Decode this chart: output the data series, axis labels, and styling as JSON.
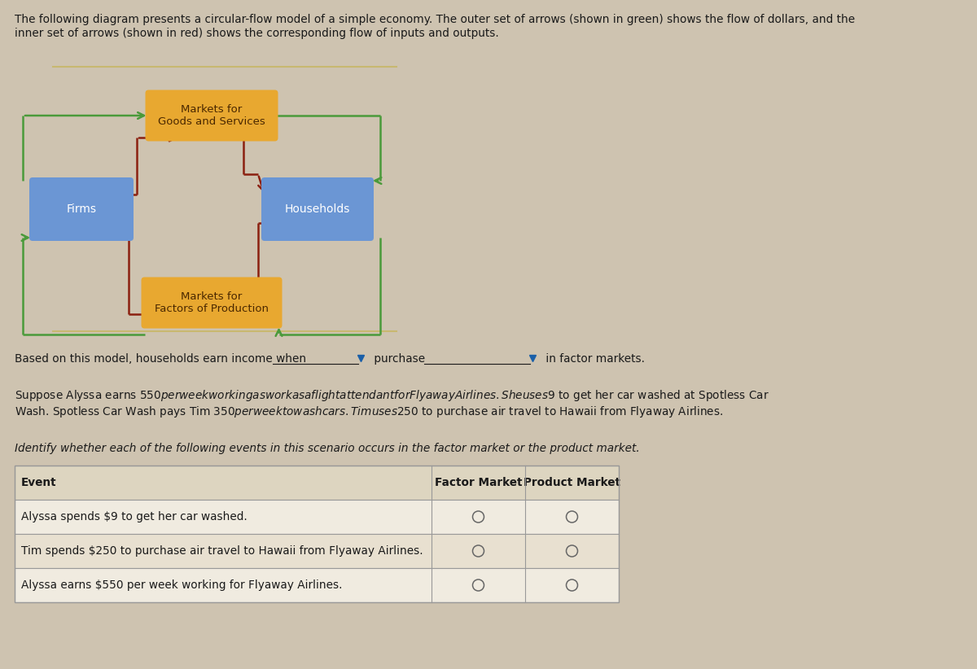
{
  "background_color": "#cec3b0",
  "header_line1": "The following diagram presents a circular-flow model of a simple economy. The outer set of arrows (shown in green) shows the flow of dollars, and the",
  "header_line2": "inner set of arrows (shown in red) shows the corresponding flow of inputs and outputs.",
  "diagram_box_color_market": "#e8a830",
  "diagram_box_color_blue": "#6b96d4",
  "firms_label": "Firms",
  "households_label": "Households",
  "market_goods_label": "Markets for\nGoods and Services",
  "market_factors_label": "Markets for\nFactors of Production",
  "outer_arrow_color": "#4a9a3a",
  "inner_arrow_color": "#8b2010",
  "divider_color": "#c8b870",
  "sentence_text": "Based on this model, households earn income when",
  "sentence_purchase": "purchase",
  "sentence_end": "in factor markets.",
  "suppose_line1": "Suppose Alyssa earns $550 per week working as work as a flight attendant for Flyaway Airlines. She uses $9 to get her car washed at Spotless Car",
  "suppose_line2": "Wash. Spotless Car Wash pays Tim $350 per week to wash cars. Tim uses $250 to purchase air travel to Hawaii from Flyaway Airlines.",
  "identify_text": "Identify whether each of the following events in this scenario occurs in the factor market or the product market.",
  "table_col1": "Event",
  "table_col2": "Factor Market",
  "table_col3": "Product Market",
  "table_rows": [
    "Alyssa spends $9 to get her car washed.",
    "Tim spends $250 to purchase air travel to Hawaii from Flyaway Airlines.",
    "Alyssa earns $550 per week working for Flyaway Airlines."
  ],
  "text_color": "#1a1a1a",
  "table_text_color": "#1a1a1a",
  "font_size": 9.8
}
